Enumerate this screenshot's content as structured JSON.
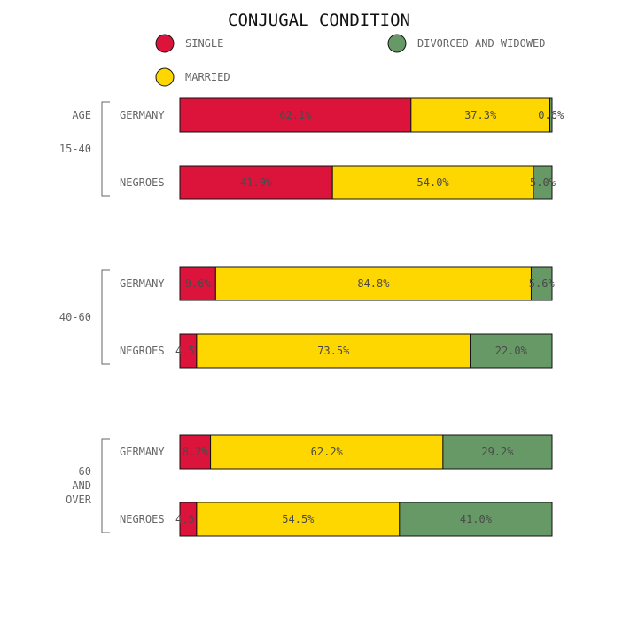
{
  "chart_data": {
    "type": "bar",
    "orientation": "horizontal",
    "stacked": "percent",
    "title": "CONJUGAL CONDITION",
    "axis_label": "AGE",
    "legend_position": "top",
    "series": [
      {
        "name": "SINGLE",
        "color": "#dc143c"
      },
      {
        "name": "MARRIED",
        "color": "#ffd700"
      },
      {
        "name": "DIVORCED AND WIDOWED",
        "color": "#654321"
      }
    ],
    "groups": [
      {
        "label": "15-40",
        "rows": [
          {
            "label": "GERMANY",
            "values": [
              62.1,
              37.3,
              0.6
            ],
            "value_labels": [
              "62.1%",
              "37.3%",
              "0.6%"
            ]
          },
          {
            "label": "NEGROES",
            "values": [
              41.0,
              54.0,
              5.0
            ],
            "value_labels": [
              "41.0%",
              "54.0%",
              "5.0%"
            ]
          }
        ]
      },
      {
        "label": "40-60",
        "rows": [
          {
            "label": "GERMANY",
            "values": [
              9.6,
              84.8,
              5.6
            ],
            "value_labels": [
              "9.6%",
              "84.8%",
              "5.6%"
            ]
          },
          {
            "label": "NEGROES",
            "values": [
              4.5,
              73.5,
              22.0
            ],
            "value_labels": [
              "4.5%",
              "73.5%",
              "22.0%"
            ]
          }
        ]
      },
      {
        "label": "60 AND OVER",
        "label_lines": [
          "60",
          "AND",
          "OVER"
        ],
        "rows": [
          {
            "label": "GERMANY",
            "values": [
              8.2,
              62.2,
              29.2
            ],
            "value_labels": [
              "8.2%",
              "62.2%",
              "29.2%"
            ]
          },
          {
            "label": "NEGROES",
            "values": [
              4.5,
              54.5,
              41.0
            ],
            "value_labels": [
              "4.5%",
              "54.5%",
              "41.0%"
            ]
          }
        ]
      }
    ]
  }
}
